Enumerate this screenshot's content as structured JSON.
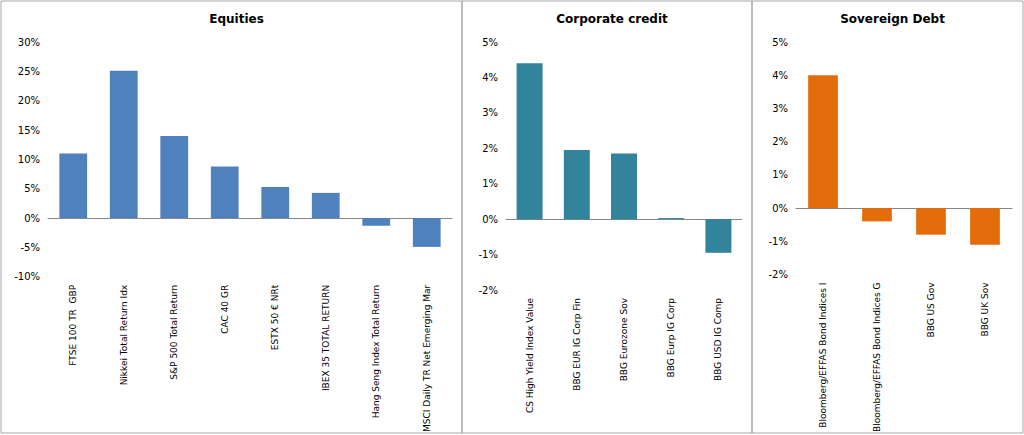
{
  "chart_data": [
    {
      "type": "bar",
      "title": "Equities",
      "categories": [
        "FTSE 100 TR  GBP",
        "Nikkei Total Return Idx",
        "S&P 500 Total Return",
        "CAC 40 GR",
        "ESTX 50 € NRt",
        "IBEX 35 TOTAL RETURN",
        "Hang Seng Index Total Return",
        "MSCI Daily TR Net Emerging Mar"
      ],
      "values": [
        11,
        25.1,
        14,
        8.8,
        5.3,
        4.3,
        -1.3,
        -4.9
      ],
      "color": "#4f81bd",
      "ylim": [
        -10,
        30
      ],
      "yticks": [
        {
          "value": -10,
          "label": "-10%"
        },
        {
          "value": -5,
          "label": "-5%"
        },
        {
          "value": 0,
          "label": "0%"
        },
        {
          "value": 5,
          "label": "5%"
        },
        {
          "value": 10,
          "label": "10%"
        },
        {
          "value": 15,
          "label": "15%"
        },
        {
          "value": 20,
          "label": "20%"
        },
        {
          "value": 25,
          "label": "25%"
        },
        {
          "value": 30,
          "label": "30%"
        }
      ],
      "grid": false
    },
    {
      "type": "bar",
      "title": "Corporate credit",
      "categories": [
        "CS High Yield Index Value",
        "BBG EUR IG Corp Fin",
        "BBG Eurozone Sov",
        "BBG Eurp IG Corp",
        "BBG USD IG Comp"
      ],
      "values": [
        4.4,
        1.95,
        1.85,
        0.03,
        -0.95
      ],
      "color": "#31849b",
      "ylim": [
        -2,
        5
      ],
      "yticks": [
        {
          "value": -2,
          "label": "-2%"
        },
        {
          "value": -1,
          "label": "-1%"
        },
        {
          "value": 0,
          "label": "0%"
        },
        {
          "value": 1,
          "label": "1%"
        },
        {
          "value": 2,
          "label": "2%"
        },
        {
          "value": 3,
          "label": "3%"
        },
        {
          "value": 4,
          "label": "4%"
        },
        {
          "value": 5,
          "label": "5%"
        }
      ],
      "grid": false
    },
    {
      "type": "bar",
      "title": "Sovereign Debt",
      "categories": [
        "Bloomberg/EFFAS Bond Indices I",
        "Bloomberg/EFFAS Bond Indices G",
        "BBG US Gov",
        "BBG UK Sov"
      ],
      "values": [
        4.0,
        -0.4,
        -0.8,
        -1.1
      ],
      "color": "#e46c0a",
      "ylim": [
        -2,
        5
      ],
      "yticks": [
        {
          "value": -2,
          "label": "-2%"
        },
        {
          "value": -1,
          "label": "-1%"
        },
        {
          "value": 0,
          "label": "0%"
        },
        {
          "value": 1,
          "label": "1%"
        },
        {
          "value": 2,
          "label": "2%"
        },
        {
          "value": 3,
          "label": "3%"
        },
        {
          "value": 4,
          "label": "4%"
        },
        {
          "value": 5,
          "label": "5%"
        }
      ],
      "grid": false
    }
  ]
}
